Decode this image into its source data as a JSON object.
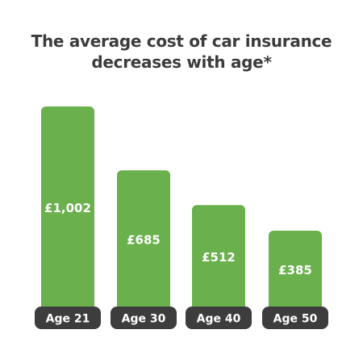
{
  "chart_data": {
    "type": "bar",
    "title_lines": [
      "The average cost of car insurance",
      "decreases with age*"
    ],
    "categories": [
      "Age 21",
      "Age 30",
      "Age 40",
      "Age 50"
    ],
    "values": [
      1002,
      685,
      512,
      385
    ],
    "value_labels": [
      "£1,002",
      "£685",
      "£512",
      "£385"
    ],
    "xlabel": "",
    "ylabel": "",
    "grid": false,
    "colors": {
      "bar": "#6ab04c",
      "bar_text": "#ffffff",
      "category_pill": "#3d3d3d",
      "category_text": "#ffffff",
      "title_text": "#3c3c3c"
    }
  }
}
